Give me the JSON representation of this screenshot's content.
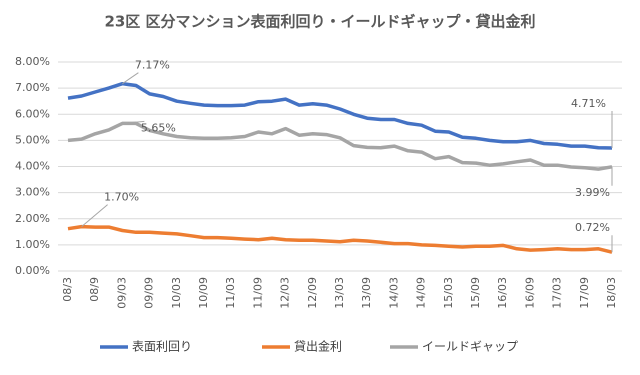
{
  "chart_data": {
    "type": "line",
    "title": "23区 区分マンション表面利回り・イールドギャップ・貸出金利",
    "categories": [
      "08/3",
      null,
      "08/9",
      null,
      "09/03",
      null,
      "09/09",
      null,
      "10/03",
      null,
      "10/09",
      null,
      "11/03",
      null,
      "11/09",
      null,
      "12/03",
      null,
      "12/09",
      null,
      "13/03",
      null,
      "13/09",
      null,
      "14/03",
      null,
      "14/09",
      null,
      "15/03",
      null,
      "15/09",
      null,
      "16/03",
      null,
      "16/09",
      null,
      "17/03",
      null,
      "17/09",
      null,
      "18/03"
    ],
    "ylim": [
      0,
      8
    ],
    "yticks": [
      {
        "value": 0,
        "label": "0.00%"
      },
      {
        "value": 1,
        "label": "1.00%"
      },
      {
        "value": 2,
        "label": "2.00%"
      },
      {
        "value": 3,
        "label": "3.00%"
      },
      {
        "value": 4,
        "label": "4.00%"
      },
      {
        "value": 5,
        "label": "5.00%"
      },
      {
        "value": 6,
        "label": "6.00%"
      },
      {
        "value": 7,
        "label": "7.00%"
      },
      {
        "value": 8,
        "label": "8.00%"
      }
    ],
    "grid": true,
    "legend": "bottom",
    "series": [
      {
        "name": "表面利回り",
        "color": "#4472C4",
        "values": [
          6.62,
          6.7,
          6.85,
          7.0,
          7.17,
          7.1,
          6.78,
          6.68,
          6.5,
          6.42,
          6.35,
          6.33,
          6.33,
          6.35,
          6.48,
          6.5,
          6.58,
          6.35,
          6.4,
          6.35,
          6.2,
          6.0,
          5.85,
          5.8,
          5.8,
          5.65,
          5.58,
          5.35,
          5.32,
          5.12,
          5.08,
          5.0,
          4.95,
          4.95,
          5.0,
          4.88,
          4.85,
          4.78,
          4.78,
          4.72,
          4.71
        ],
        "value_labels": [
          null,
          null,
          null,
          null,
          "7.17%",
          null,
          null,
          null,
          null,
          null,
          null,
          null,
          null,
          null,
          null,
          null,
          null,
          null,
          null,
          null,
          null,
          null,
          null,
          null,
          null,
          null,
          null,
          null,
          null,
          null,
          null,
          null,
          null,
          null,
          null,
          null,
          null,
          null,
          null,
          null,
          "4.71%"
        ]
      },
      {
        "name": "貸出金利",
        "color": "#ED7D31",
        "values": [
          1.62,
          1.7,
          1.68,
          1.68,
          1.55,
          1.48,
          1.48,
          1.45,
          1.42,
          1.35,
          1.28,
          1.28,
          1.25,
          1.22,
          1.2,
          1.25,
          1.2,
          1.18,
          1.18,
          1.15,
          1.12,
          1.18,
          1.15,
          1.1,
          1.05,
          1.05,
          1.0,
          0.98,
          0.95,
          0.92,
          0.95,
          0.95,
          0.98,
          0.85,
          0.8,
          0.82,
          0.85,
          0.82,
          0.82,
          0.85,
          0.72
        ],
        "value_labels": [
          null,
          "1.70%",
          null,
          null,
          null,
          null,
          null,
          null,
          null,
          null,
          null,
          null,
          null,
          null,
          null,
          null,
          null,
          null,
          null,
          null,
          null,
          null,
          null,
          null,
          null,
          null,
          null,
          null,
          null,
          null,
          null,
          null,
          null,
          null,
          null,
          null,
          null,
          null,
          null,
          null,
          "0.72%"
        ]
      },
      {
        "name": "イールドギャップ",
        "color": "#A5A5A5",
        "values": [
          5.0,
          5.05,
          5.25,
          5.4,
          5.65,
          5.65,
          5.38,
          5.25,
          5.15,
          5.1,
          5.08,
          5.08,
          5.1,
          5.15,
          5.32,
          5.25,
          5.45,
          5.2,
          5.25,
          5.22,
          5.1,
          4.8,
          4.73,
          4.72,
          4.78,
          4.6,
          4.55,
          4.3,
          4.38,
          4.15,
          4.13,
          4.05,
          4.1,
          4.18,
          4.25,
          4.05,
          4.05,
          3.98,
          3.95,
          3.9,
          3.99
        ],
        "value_labels": [
          null,
          null,
          null,
          null,
          "5.65%",
          null,
          null,
          null,
          null,
          null,
          null,
          null,
          null,
          null,
          null,
          null,
          null,
          null,
          null,
          null,
          null,
          null,
          null,
          null,
          null,
          null,
          null,
          null,
          null,
          null,
          null,
          null,
          null,
          null,
          null,
          null,
          null,
          null,
          null,
          null,
          "3.99%"
        ]
      }
    ]
  }
}
